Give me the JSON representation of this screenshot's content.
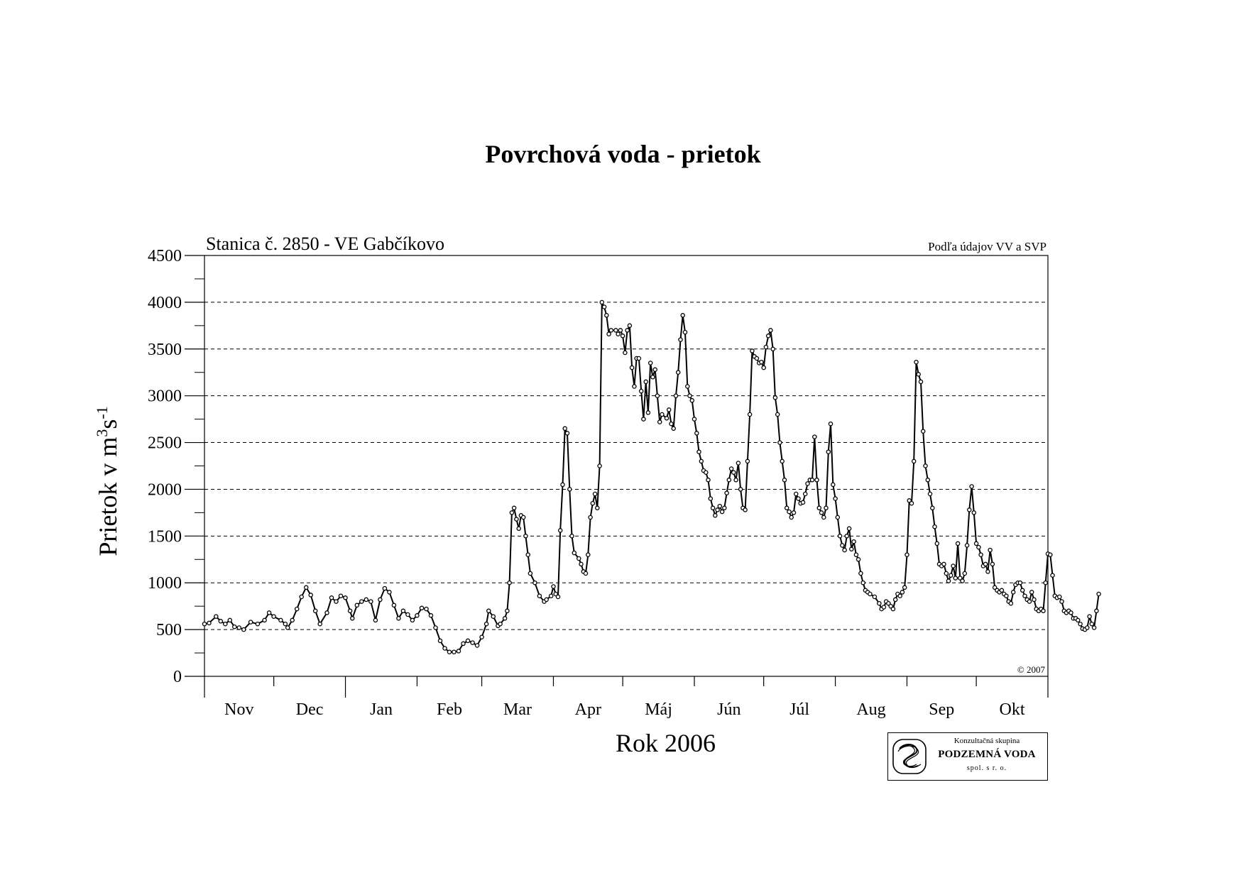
{
  "page": {
    "title": "Povrchová voda - prietok"
  },
  "logo": {
    "top_text": "Konzultačná skupina",
    "name": "PODZEMNÁ VODA",
    "sub_text": "spol. s r. o."
  },
  "chart_data": {
    "type": "line",
    "title": "Povrchová voda - prietok",
    "station_label": "Stanica č. 2850 - VE Gabčíkovo",
    "source_note": "Podľa údajov VV a SVP",
    "copyright": "© 2007",
    "ylabel_main": "Prietok v m",
    "ylabel_sup1": "3",
    "ylabel_mid": "s",
    "ylabel_sup2": "-1",
    "xlabel": "Rok 2006",
    "ylim": [
      0,
      4500
    ],
    "yticks": [
      0,
      500,
      1000,
      1500,
      2000,
      2500,
      3000,
      3500,
      4000,
      4500
    ],
    "y_minor_step": 250,
    "grid": "horizontal dashed",
    "months": [
      "Nov",
      "Dec",
      "Jan",
      "Feb",
      "Mar",
      "Apr",
      "Máj",
      "Jún",
      "Júl",
      "Aug",
      "Sep",
      "Okt"
    ],
    "month_days": [
      30,
      31,
      31,
      28,
      31,
      30,
      31,
      30,
      31,
      31,
      30,
      31
    ],
    "series": [
      {
        "marker": "circle",
        "points": [
          [
            0,
            560
          ],
          [
            2,
            570
          ],
          [
            5,
            640
          ],
          [
            7,
            590
          ],
          [
            9,
            560
          ],
          [
            11,
            600
          ],
          [
            13,
            530
          ],
          [
            15,
            520
          ],
          [
            17,
            500
          ],
          [
            20,
            580
          ],
          [
            23,
            560
          ],
          [
            26,
            600
          ],
          [
            28,
            680
          ],
          [
            30,
            640
          ],
          [
            33,
            600
          ],
          [
            35,
            560
          ],
          [
            36,
            520
          ],
          [
            38,
            600
          ],
          [
            40,
            720
          ],
          [
            42,
            850
          ],
          [
            44,
            950
          ],
          [
            46,
            870
          ],
          [
            48,
            700
          ],
          [
            50,
            560
          ],
          [
            53,
            680
          ],
          [
            55,
            840
          ],
          [
            57,
            800
          ],
          [
            59,
            860
          ],
          [
            61,
            840
          ],
          [
            63,
            700
          ],
          [
            64,
            620
          ],
          [
            66,
            760
          ],
          [
            68,
            800
          ],
          [
            70,
            820
          ],
          [
            72,
            800
          ],
          [
            74,
            600
          ],
          [
            76,
            820
          ],
          [
            78,
            940
          ],
          [
            80,
            900
          ],
          [
            82,
            760
          ],
          [
            84,
            620
          ],
          [
            86,
            700
          ],
          [
            88,
            660
          ],
          [
            90,
            600
          ],
          [
            92,
            650
          ],
          [
            94,
            730
          ],
          [
            96,
            720
          ],
          [
            98,
            650
          ],
          [
            100,
            520
          ],
          [
            102,
            380
          ],
          [
            104,
            300
          ],
          [
            106,
            260
          ],
          [
            108,
            260
          ],
          [
            110,
            270
          ],
          [
            112,
            350
          ],
          [
            114,
            380
          ],
          [
            116,
            360
          ],
          [
            118,
            330
          ],
          [
            120,
            420
          ],
          [
            122,
            560
          ],
          [
            123,
            700
          ],
          [
            125,
            640
          ],
          [
            127,
            540
          ],
          [
            128,
            560
          ],
          [
            130,
            620
          ],
          [
            131,
            700
          ],
          [
            132,
            1000
          ],
          [
            133,
            1750
          ],
          [
            134,
            1800
          ],
          [
            135,
            1680
          ],
          [
            136,
            1580
          ],
          [
            137,
            1720
          ],
          [
            138,
            1700
          ],
          [
            139,
            1500
          ],
          [
            140,
            1300
          ],
          [
            141,
            1100
          ],
          [
            143,
            1000
          ],
          [
            145,
            860
          ],
          [
            147,
            800
          ],
          [
            148,
            820
          ],
          [
            150,
            860
          ],
          [
            151,
            960
          ],
          [
            152,
            880
          ],
          [
            153,
            850
          ],
          [
            154,
            1560
          ],
          [
            155,
            2050
          ],
          [
            156,
            2650
          ],
          [
            157,
            2600
          ],
          [
            158,
            2000
          ],
          [
            159,
            1500
          ],
          [
            160,
            1320
          ],
          [
            162,
            1260
          ],
          [
            163,
            1200
          ],
          [
            164,
            1120
          ],
          [
            165,
            1100
          ],
          [
            166,
            1300
          ],
          [
            167,
            1700
          ],
          [
            168,
            1850
          ],
          [
            169,
            1950
          ],
          [
            170,
            1800
          ],
          [
            171,
            2250
          ],
          [
            172,
            4000
          ],
          [
            173,
            3950
          ],
          [
            174,
            3860
          ],
          [
            175,
            3660
          ],
          [
            176,
            3700
          ],
          [
            178,
            3700
          ],
          [
            179,
            3660
          ],
          [
            180,
            3700
          ],
          [
            181,
            3640
          ],
          [
            182,
            3460
          ],
          [
            183,
            3700
          ],
          [
            184,
            3750
          ],
          [
            185,
            3300
          ],
          [
            186,
            3100
          ],
          [
            187,
            3400
          ],
          [
            188,
            3400
          ],
          [
            189,
            3050
          ],
          [
            190,
            2750
          ],
          [
            191,
            3150
          ],
          [
            192,
            2820
          ],
          [
            193,
            3350
          ],
          [
            194,
            3200
          ],
          [
            195,
            3280
          ],
          [
            196,
            3000
          ],
          [
            197,
            2720
          ],
          [
            198,
            2800
          ],
          [
            200,
            2760
          ],
          [
            201,
            2850
          ],
          [
            202,
            2700
          ],
          [
            203,
            2650
          ],
          [
            204,
            3000
          ],
          [
            205,
            3250
          ],
          [
            206,
            3600
          ],
          [
            207,
            3860
          ],
          [
            208,
            3680
          ],
          [
            209,
            3100
          ],
          [
            210,
            3000
          ],
          [
            211,
            2950
          ],
          [
            212,
            2750
          ],
          [
            213,
            2600
          ],
          [
            214,
            2400
          ],
          [
            215,
            2300
          ],
          [
            216,
            2200
          ],
          [
            217,
            2180
          ],
          [
            218,
            2100
          ],
          [
            219,
            1900
          ],
          [
            220,
            1800
          ],
          [
            221,
            1720
          ],
          [
            222,
            1780
          ],
          [
            223,
            1820
          ],
          [
            224,
            1760
          ],
          [
            225,
            1800
          ],
          [
            226,
            1960
          ],
          [
            227,
            2100
          ],
          [
            228,
            2220
          ],
          [
            229,
            2180
          ],
          [
            230,
            2100
          ],
          [
            231,
            2280
          ],
          [
            232,
            2000
          ],
          [
            233,
            1800
          ],
          [
            234,
            1780
          ],
          [
            235,
            2300
          ],
          [
            236,
            2800
          ],
          [
            237,
            3480
          ],
          [
            238,
            3420
          ],
          [
            239,
            3400
          ],
          [
            240,
            3350
          ],
          [
            241,
            3360
          ],
          [
            242,
            3300
          ],
          [
            243,
            3520
          ],
          [
            244,
            3640
          ],
          [
            245,
            3700
          ],
          [
            246,
            3500
          ],
          [
            247,
            2980
          ],
          [
            248,
            2800
          ],
          [
            249,
            2500
          ],
          [
            250,
            2300
          ],
          [
            251,
            2100
          ],
          [
            252,
            1800
          ],
          [
            253,
            1760
          ],
          [
            254,
            1700
          ],
          [
            255,
            1750
          ],
          [
            256,
            1950
          ],
          [
            257,
            1900
          ],
          [
            258,
            1850
          ],
          [
            259,
            1860
          ],
          [
            260,
            1950
          ],
          [
            261,
            2060
          ],
          [
            262,
            2100
          ],
          [
            263,
            2100
          ],
          [
            264,
            2560
          ],
          [
            265,
            2100
          ],
          [
            266,
            1800
          ],
          [
            267,
            1750
          ],
          [
            268,
            1700
          ],
          [
            269,
            1800
          ],
          [
            270,
            2400
          ],
          [
            271,
            2700
          ],
          [
            272,
            2050
          ],
          [
            273,
            1900
          ],
          [
            274,
            1700
          ],
          [
            275,
            1500
          ],
          [
            276,
            1400
          ],
          [
            277,
            1350
          ],
          [
            278,
            1500
          ],
          [
            279,
            1580
          ],
          [
            280,
            1360
          ],
          [
            281,
            1440
          ],
          [
            282,
            1300
          ],
          [
            283,
            1250
          ],
          [
            284,
            1100
          ],
          [
            285,
            1000
          ],
          [
            286,
            920
          ],
          [
            287,
            900
          ],
          [
            288,
            880
          ],
          [
            290,
            850
          ],
          [
            292,
            780
          ],
          [
            293,
            720
          ],
          [
            294,
            740
          ],
          [
            295,
            800
          ],
          [
            296,
            780
          ],
          [
            297,
            750
          ],
          [
            298,
            720
          ],
          [
            299,
            820
          ],
          [
            300,
            880
          ],
          [
            301,
            860
          ],
          [
            302,
            900
          ],
          [
            303,
            950
          ],
          [
            304,
            1300
          ],
          [
            305,
            1880
          ],
          [
            306,
            1850
          ],
          [
            307,
            2300
          ],
          [
            308,
            3360
          ],
          [
            309,
            3230
          ],
          [
            310,
            3150
          ],
          [
            311,
            2620
          ],
          [
            312,
            2250
          ],
          [
            313,
            2100
          ],
          [
            314,
            1950
          ],
          [
            315,
            1800
          ],
          [
            316,
            1600
          ],
          [
            317,
            1420
          ],
          [
            318,
            1200
          ],
          [
            319,
            1180
          ],
          [
            320,
            1200
          ],
          [
            321,
            1100
          ],
          [
            322,
            1020
          ],
          [
            323,
            1080
          ],
          [
            324,
            1180
          ],
          [
            325,
            1050
          ],
          [
            326,
            1420
          ],
          [
            327,
            1050
          ],
          [
            328,
            1020
          ],
          [
            329,
            1100
          ],
          [
            330,
            1400
          ],
          [
            331,
            1780
          ],
          [
            332,
            2030
          ],
          [
            333,
            1750
          ],
          [
            334,
            1420
          ],
          [
            335,
            1380
          ],
          [
            336,
            1300
          ],
          [
            337,
            1180
          ],
          [
            338,
            1200
          ],
          [
            339,
            1120
          ],
          [
            340,
            1350
          ],
          [
            341,
            1200
          ],
          [
            342,
            950
          ],
          [
            343,
            920
          ],
          [
            344,
            900
          ],
          [
            345,
            920
          ],
          [
            346,
            880
          ],
          [
            347,
            860
          ],
          [
            348,
            800
          ],
          [
            349,
            780
          ],
          [
            350,
            900
          ],
          [
            351,
            980
          ],
          [
            352,
            1000
          ],
          [
            353,
            1000
          ],
          [
            354,
            920
          ],
          [
            355,
            860
          ],
          [
            356,
            820
          ],
          [
            357,
            800
          ],
          [
            358,
            900
          ],
          [
            359,
            820
          ],
          [
            360,
            720
          ],
          [
            361,
            700
          ],
          [
            362,
            720
          ],
          [
            363,
            700
          ],
          [
            364,
            1000
          ],
          [
            365,
            1310
          ],
          [
            366,
            1300
          ],
          [
            367,
            1080
          ],
          [
            368,
            860
          ],
          [
            369,
            840
          ],
          [
            370,
            850
          ],
          [
            371,
            800
          ],
          [
            372,
            700
          ],
          [
            373,
            680
          ],
          [
            374,
            700
          ],
          [
            375,
            680
          ],
          [
            376,
            620
          ],
          [
            377,
            620
          ],
          [
            378,
            600
          ],
          [
            379,
            560
          ],
          [
            380,
            510
          ],
          [
            381,
            500
          ],
          [
            382,
            520
          ],
          [
            383,
            640
          ],
          [
            384,
            560
          ],
          [
            385,
            520
          ],
          [
            386,
            700
          ],
          [
            387,
            880
          ]
        ]
      }
    ]
  }
}
